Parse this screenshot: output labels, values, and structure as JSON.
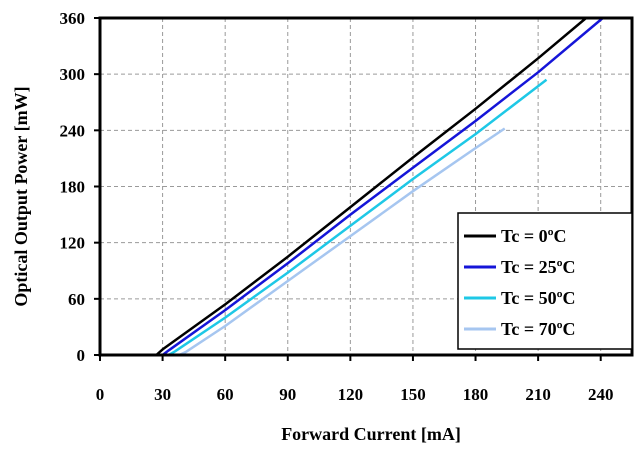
{
  "chart_data": {
    "type": "line",
    "xlabel": "Forward Current [mA]",
    "ylabel": "Optical Output Power [mW]",
    "xlim": [
      0,
      255
    ],
    "ylim": [
      0,
      360
    ],
    "xticks": [
      0,
      30,
      60,
      90,
      120,
      150,
      180,
      210,
      240
    ],
    "yticks": [
      0,
      60,
      120,
      180,
      240,
      300,
      360
    ],
    "grid": true,
    "legend_position": "bottom-right",
    "series": [
      {
        "name": "Tc = 0ºC",
        "color": "#000000",
        "x": [
          0,
          27,
          30,
          60,
          90,
          120,
          150,
          180,
          210,
          233
        ],
        "y": [
          0,
          0,
          6,
          54,
          105,
          158,
          211,
          263,
          317,
          360
        ]
      },
      {
        "name": "Tc = 25ºC",
        "color": "#1515d8",
        "x": [
          0,
          30,
          33,
          60,
          90,
          120,
          150,
          180,
          210,
          241
        ],
        "y": [
          0,
          0,
          5,
          48,
          98,
          150,
          200,
          250,
          302,
          360
        ]
      },
      {
        "name": "Tc = 50ºC",
        "color": "#1ec8e6",
        "x": [
          0,
          33,
          36,
          60,
          90,
          120,
          150,
          180,
          214
        ],
        "y": [
          0,
          0,
          4,
          40,
          88,
          138,
          188,
          236,
          294
        ]
      },
      {
        "name": "Tc = 70ºC",
        "color": "#a6c6f0",
        "x": [
          0,
          38,
          41,
          60,
          90,
          120,
          150,
          180,
          194
        ],
        "y": [
          0,
          0,
          3,
          31,
          79,
          127,
          175,
          221,
          242
        ]
      }
    ]
  }
}
